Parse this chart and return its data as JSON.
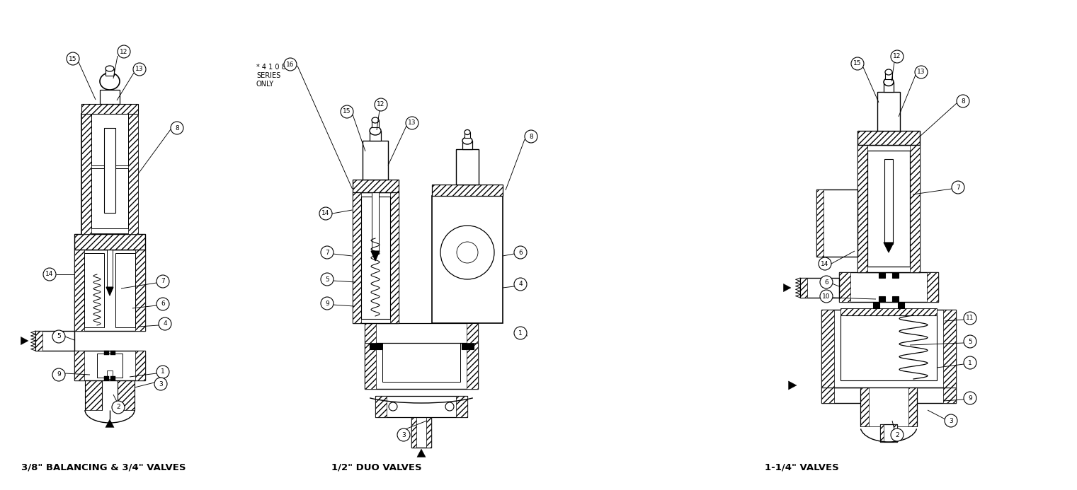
{
  "background_color": "#ffffff",
  "line_color": "#000000",
  "labels": {
    "left": "3/8\" BALANCING & 3/4\" VALVES",
    "center": "1/2\" DUO VALVES",
    "right": "1-1/4\" VALVES"
  },
  "note_lines": [
    "* 4 1 0 8",
    "SERIES",
    "ONLY"
  ],
  "figsize": [
    15.21,
    6.93
  ],
  "dpi": 100
}
